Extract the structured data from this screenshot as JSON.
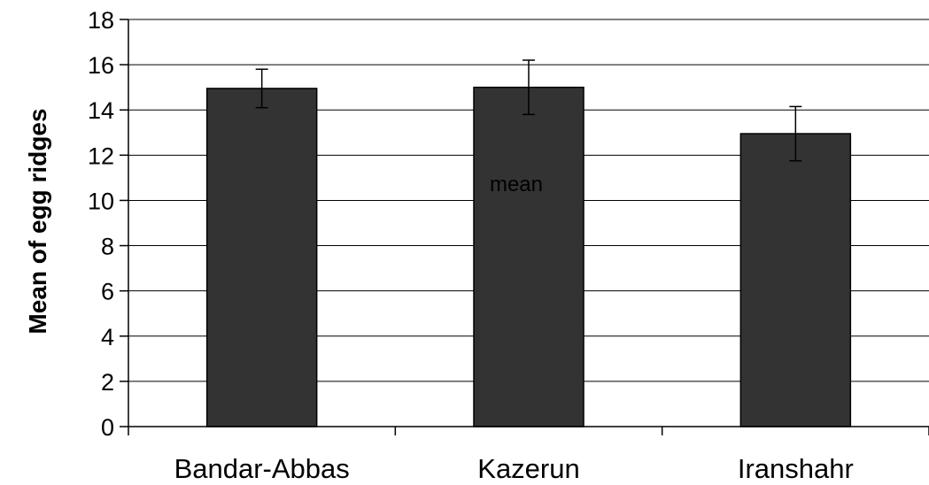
{
  "chart_data": {
    "type": "bar",
    "title": "",
    "xlabel": "",
    "ylabel": "Mean of egg ridges",
    "categories": [
      "Bandar-Abbas",
      "Kazerun",
      "Iranshahr"
    ],
    "values": [
      14.95,
      15.0,
      12.95
    ],
    "error": [
      0.85,
      1.2,
      1.2
    ],
    "ylim": [
      0,
      18
    ],
    "yticks": [
      0,
      2,
      4,
      6,
      8,
      10,
      12,
      14,
      16,
      18
    ],
    "grid": true,
    "bar_color": "#333333",
    "annotations": [
      {
        "text": "mean",
        "category": "Kazerun",
        "y": 10.4
      }
    ]
  }
}
